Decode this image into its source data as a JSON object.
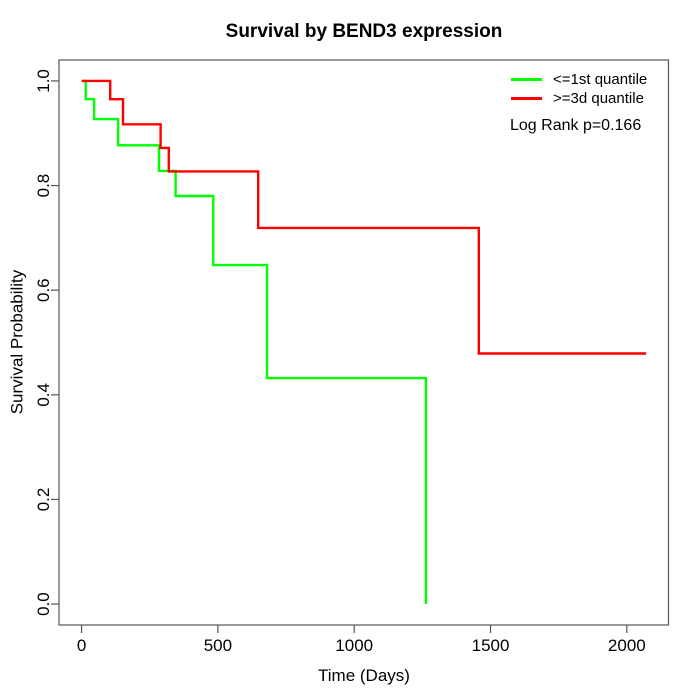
{
  "chart_data": {
    "type": "line",
    "subtype": "kaplan-meier-step",
    "title": "Survival by BEND3 expression",
    "xlabel": "Time (Days)",
    "ylabel": "Survival Probability",
    "xlim": [
      0,
      2070
    ],
    "ylim": [
      0,
      1
    ],
    "grid": false,
    "x_ticks": [
      {
        "value": 0,
        "label": "0"
      },
      {
        "value": 500,
        "label": "500"
      },
      {
        "value": 1000,
        "label": "1000"
      },
      {
        "value": 1500,
        "label": "1500"
      },
      {
        "value": 2000,
        "label": "2000"
      }
    ],
    "y_ticks": [
      {
        "value": 0.0,
        "label": "0.0"
      },
      {
        "value": 0.2,
        "label": "0.2"
      },
      {
        "value": 0.4,
        "label": "0.4"
      },
      {
        "value": 0.6,
        "label": "0.6"
      },
      {
        "value": 0.8,
        "label": "0.8"
      },
      {
        "value": 1.0,
        "label": "1.0"
      }
    ],
    "legend": {
      "position": "topright",
      "items": [
        {
          "label": "<=1st quantile",
          "color": "#00ff00"
        },
        {
          "label": ">=3d quantile",
          "color": "#ff0000"
        }
      ]
    },
    "annotation": "Log Rank p=0.166",
    "series": [
      {
        "name": "<=1st quantile",
        "color": "#00ff00",
        "end_time": 1263,
        "steps": [
          [
            0,
            1.0
          ],
          [
            15,
            0.965
          ],
          [
            46,
            0.927
          ],
          [
            134,
            0.877
          ],
          [
            284,
            0.828
          ],
          [
            345,
            0.78
          ],
          [
            483,
            0.648
          ],
          [
            680,
            0.432
          ],
          [
            1263,
            0.0
          ]
        ]
      },
      {
        "name": ">=3d quantile",
        "color": "#ff0000",
        "end_time": 2071,
        "steps": [
          [
            0,
            1.0
          ],
          [
            105,
            0.965
          ],
          [
            152,
            0.917
          ],
          [
            290,
            0.872
          ],
          [
            320,
            0.827
          ],
          [
            648,
            0.719
          ],
          [
            1457,
            0.479
          ]
        ]
      }
    ],
    "axis_color": "#555555",
    "text_color": "#000000"
  }
}
